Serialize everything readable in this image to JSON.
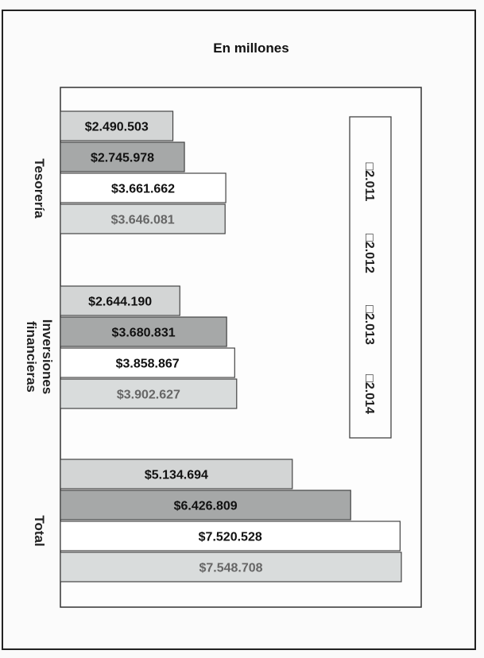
{
  "chart_data": {
    "type": "bar",
    "orientation": "horizontal",
    "title": "En millones",
    "categories": [
      "Tesorería",
      "Inversiones financieras",
      "Total"
    ],
    "category_lines": [
      [
        "Tesorería"
      ],
      [
        "Inversiones",
        "financieras"
      ],
      [
        "Total"
      ]
    ],
    "series": [
      {
        "name": "2.011",
        "values": [
          2490503,
          2644190,
          5134694
        ],
        "labels": [
          "$2.490.503",
          "$2.644.190",
          "$5.134.694"
        ],
        "color": "#d3d5d5"
      },
      {
        "name": "2.012",
        "values": [
          2745978,
          3680831,
          6426809
        ],
        "labels": [
          "$2.745.978",
          "$3.680.831",
          "$6.426.809"
        ],
        "color": "#a6a8a8"
      },
      {
        "name": "2.013",
        "values": [
          3661662,
          3858867,
          7520528
        ],
        "labels": [
          "$3.661.662",
          "$3.858.867",
          "$7.520.528"
        ],
        "color": "#ffffff"
      },
      {
        "name": "2.014",
        "values": [
          3646081,
          3902627,
          7548708
        ],
        "labels": [
          "$3.646.081",
          "$3.902.627",
          "$7.548.708"
        ],
        "color": "#d9dcdc"
      }
    ],
    "label_colors": [
      "#111111",
      "#111111",
      "#111111",
      "#666666"
    ],
    "legend": [
      "□2.011",
      "□2.012",
      "□2.013",
      "□2.014"
    ],
    "legend_position": "right",
    "xlim": [
      0,
      8000000
    ],
    "grid": false
  }
}
